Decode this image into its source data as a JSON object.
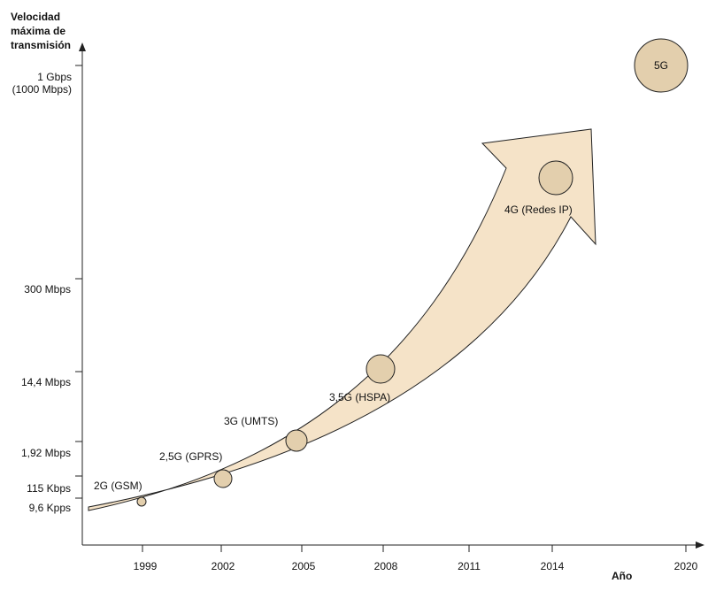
{
  "diagram": {
    "y_title": [
      "Velocidad",
      "máxima de",
      "transmisión"
    ],
    "x_title": "Año",
    "y_labels": [
      {
        "lines": [
          "1 Gbps",
          "(1000 Mbps)"
        ]
      },
      {
        "lines": [
          "300 Mbps"
        ]
      },
      {
        "lines": [
          "14,4 Mbps"
        ]
      },
      {
        "lines": [
          "1,92 Mbps"
        ]
      },
      {
        "lines": [
          "115 Kbps"
        ]
      },
      {
        "lines": [
          "9,6 Kpps"
        ]
      }
    ],
    "x_ticks": [
      "1999",
      "2002",
      "2005",
      "2008",
      "2011",
      "2014",
      "2020"
    ],
    "generations": [
      {
        "label": "2G (GSM)"
      },
      {
        "label": "2,5G (GPRS)"
      },
      {
        "label": "3G (UMTS)"
      },
      {
        "label": "3,5G (HSPA)"
      },
      {
        "label": "4G (Redes IP)"
      },
      {
        "label": "5G"
      }
    ],
    "colors": {
      "arrow_fill": "#f5e3c8",
      "circle_fill": "#e3cfad",
      "stroke": "#222222"
    }
  }
}
